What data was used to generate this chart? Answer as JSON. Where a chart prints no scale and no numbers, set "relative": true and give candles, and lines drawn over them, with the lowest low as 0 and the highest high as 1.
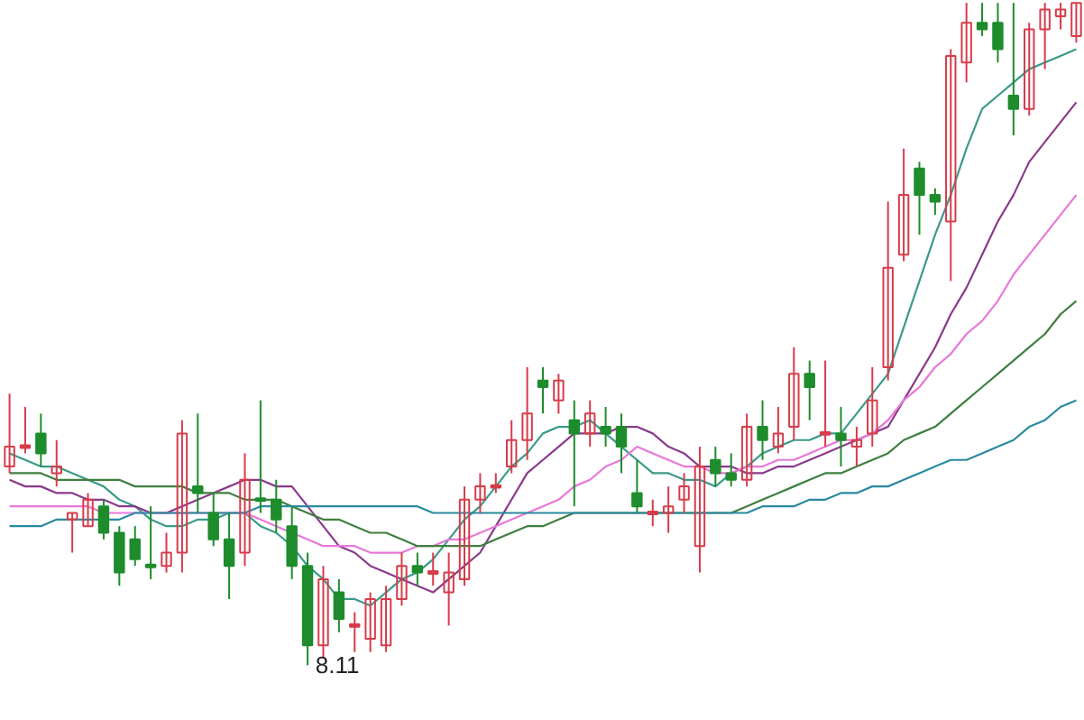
{
  "chart_data": {
    "type": "candlestick",
    "relative": true,
    "categories": [
      null,
      null,
      null,
      null,
      null,
      null,
      null,
      null,
      null,
      null,
      null,
      null,
      null,
      null,
      null,
      null,
      null,
      null,
      null,
      null,
      null,
      null,
      null,
      null,
      null,
      null,
      null,
      null,
      null,
      null,
      null,
      null,
      null,
      null,
      null,
      null,
      null,
      null,
      null,
      null,
      null,
      null,
      null,
      null,
      null,
      null,
      null,
      null,
      null,
      null,
      null,
      null,
      null,
      null,
      null,
      null,
      null,
      null,
      null,
      null,
      null,
      null,
      null,
      null,
      null,
      null,
      null,
      null,
      null
    ],
    "ohlc": [
      [
        0.3,
        0.41,
        0.29,
        0.33
      ],
      [
        0.33,
        0.39,
        0.32,
        0.33
      ],
      [
        0.35,
        0.38,
        0.3,
        0.32
      ],
      [
        0.29,
        0.34,
        0.27,
        0.3
      ],
      [
        0.22,
        0.23,
        0.17,
        0.23
      ],
      [
        0.21,
        0.26,
        0.21,
        0.25
      ],
      [
        0.24,
        0.25,
        0.19,
        0.2
      ],
      [
        0.2,
        0.21,
        0.12,
        0.14
      ],
      [
        0.19,
        0.21,
        0.15,
        0.16
      ],
      [
        0.15,
        0.24,
        0.13,
        0.15
      ],
      [
        0.15,
        0.2,
        0.14,
        0.17
      ],
      [
        0.17,
        0.37,
        0.14,
        0.35
      ],
      [
        0.27,
        0.38,
        0.23,
        0.26
      ],
      [
        0.23,
        0.26,
        0.18,
        0.19
      ],
      [
        0.19,
        0.23,
        0.1,
        0.15
      ],
      [
        0.17,
        0.32,
        0.15,
        0.28
      ],
      [
        0.25,
        0.4,
        0.23,
        0.25
      ],
      [
        0.25,
        0.28,
        0.2,
        0.22
      ],
      [
        0.21,
        0.24,
        0.13,
        0.15
      ],
      [
        0.15,
        0.17,
        0.0,
        0.03
      ],
      [
        0.03,
        0.15,
        0.01,
        0.13
      ],
      [
        0.11,
        0.13,
        0.05,
        0.07
      ],
      [
        0.06,
        0.08,
        0.02,
        0.06
      ],
      [
        0.04,
        0.11,
        0.02,
        0.1
      ],
      [
        0.03,
        0.12,
        0.02,
        0.1
      ],
      [
        0.1,
        0.17,
        0.09,
        0.15
      ],
      [
        0.15,
        0.17,
        0.12,
        0.14
      ],
      [
        0.14,
        0.17,
        0.12,
        0.14
      ],
      [
        0.11,
        0.17,
        0.06,
        0.14
      ],
      [
        0.13,
        0.27,
        0.12,
        0.25
      ],
      [
        0.25,
        0.29,
        0.23,
        0.27
      ],
      [
        0.27,
        0.29,
        0.26,
        0.27
      ],
      [
        0.3,
        0.37,
        0.29,
        0.34
      ],
      [
        0.34,
        0.45,
        0.31,
        0.38
      ],
      [
        0.43,
        0.45,
        0.38,
        0.42
      ],
      [
        0.4,
        0.44,
        0.38,
        0.43
      ],
      [
        0.37,
        0.4,
        0.24,
        0.35
      ],
      [
        0.35,
        0.4,
        0.33,
        0.38
      ],
      [
        0.36,
        0.39,
        0.33,
        0.35
      ],
      [
        0.36,
        0.38,
        0.29,
        0.33
      ],
      [
        0.26,
        0.31,
        0.23,
        0.24
      ],
      [
        0.23,
        0.25,
        0.21,
        0.23
      ],
      [
        0.23,
        0.27,
        0.2,
        0.24
      ],
      [
        0.25,
        0.29,
        0.23,
        0.27
      ],
      [
        0.18,
        0.33,
        0.14,
        0.3
      ],
      [
        0.31,
        0.33,
        0.27,
        0.29
      ],
      [
        0.29,
        0.32,
        0.27,
        0.28
      ],
      [
        0.28,
        0.38,
        0.27,
        0.36
      ],
      [
        0.36,
        0.4,
        0.31,
        0.34
      ],
      [
        0.33,
        0.39,
        0.32,
        0.35
      ],
      [
        0.36,
        0.48,
        0.34,
        0.44
      ],
      [
        0.44,
        0.46,
        0.37,
        0.42
      ],
      [
        0.35,
        0.46,
        0.33,
        0.35
      ],
      [
        0.35,
        0.39,
        0.3,
        0.34
      ],
      [
        0.33,
        0.36,
        0.3,
        0.34
      ],
      [
        0.35,
        0.45,
        0.33,
        0.4
      ],
      [
        0.45,
        0.7,
        0.43,
        0.6
      ],
      [
        0.62,
        0.78,
        0.61,
        0.71
      ],
      [
        0.75,
        0.76,
        0.65,
        0.71
      ],
      [
        0.71,
        0.72,
        0.68,
        0.7
      ],
      [
        0.67,
        0.93,
        0.58,
        0.92
      ],
      [
        0.91,
        1.0,
        0.88,
        0.97
      ],
      [
        0.97,
        1.0,
        0.95,
        0.96
      ],
      [
        0.97,
        1.0,
        0.91,
        0.93
      ],
      [
        0.86,
        1.0,
        0.8,
        0.84
      ],
      [
        0.84,
        0.97,
        0.83,
        0.96
      ],
      [
        0.96,
        1.0,
        0.9,
        0.99
      ],
      [
        0.98,
        1.0,
        0.96,
        0.99
      ],
      [
        0.95,
        1.0,
        0.94,
        1.0
      ]
    ],
    "colors": [
      "#d63c4a",
      "#d63c4a",
      "#1e8c2c",
      "#d63c4a",
      "#d63c4a",
      "#d63c4a",
      "#1e8c2c",
      "#1e8c2c",
      "#1e8c2c",
      "#1e8c2c",
      "#d63c4a",
      "#d63c4a",
      "#1e8c2c",
      "#1e8c2c",
      "#1e8c2c",
      "#d63c4a",
      "#1e8c2c",
      "#1e8c2c",
      "#1e8c2c",
      "#1e8c2c",
      "#d63c4a",
      "#1e8c2c",
      "#d63c4a",
      "#d63c4a",
      "#d63c4a",
      "#d63c4a",
      "#1e8c2c",
      "#d63c4a",
      "#d63c4a",
      "#d63c4a",
      "#d63c4a",
      "#d63c4a",
      "#d63c4a",
      "#d63c4a",
      "#1e8c2c",
      "#d63c4a",
      "#1e8c2c",
      "#d63c4a",
      "#1e8c2c",
      "#1e8c2c",
      "#1e8c2c",
      "#d63c4a",
      "#d63c4a",
      "#d63c4a",
      "#d63c4a",
      "#1e8c2c",
      "#1e8c2c",
      "#d63c4a",
      "#1e8c2c",
      "#d63c4a",
      "#d63c4a",
      "#1e8c2c",
      "#d63c4a",
      "#1e8c2c",
      "#d63c4a",
      "#d63c4a",
      "#d63c4a",
      "#d63c4a",
      "#1e8c2c",
      "#1e8c2c",
      "#d63c4a",
      "#d63c4a",
      "#1e8c2c",
      "#1e8c2c",
      "#1e8c2c",
      "#d63c4a",
      "#d63c4a",
      "#d63c4a",
      "#d63c4a"
    ],
    "series": [
      {
        "type": "line",
        "color": "#3a9a8a",
        "values": [
          0.32,
          0.31,
          0.3,
          0.3,
          0.29,
          0.28,
          0.27,
          0.25,
          0.24,
          0.22,
          0.21,
          0.21,
          0.22,
          0.22,
          0.23,
          0.23,
          0.21,
          0.2,
          0.18,
          0.15,
          0.13,
          0.1,
          0.1,
          0.09,
          0.11,
          0.13,
          0.14,
          0.16,
          0.19,
          0.22,
          0.24,
          0.27,
          0.3,
          0.32,
          0.35,
          0.36,
          0.36,
          0.37,
          0.35,
          0.33,
          0.31,
          0.29,
          0.29,
          0.28,
          0.28,
          0.27,
          0.29,
          0.3,
          0.32,
          0.33,
          0.34,
          0.34,
          0.35,
          0.35,
          0.38,
          0.41,
          0.44,
          0.51,
          0.58,
          0.65,
          0.71,
          0.78,
          0.84,
          0.86,
          0.88,
          0.9,
          0.91,
          0.92,
          0.93
        ]
      },
      {
        "type": "line",
        "color": "#8a3a8a",
        "values": [
          0.28,
          0.27,
          0.27,
          0.26,
          0.26,
          0.25,
          0.25,
          0.24,
          0.24,
          0.23,
          0.23,
          0.24,
          0.25,
          0.26,
          0.27,
          0.28,
          0.28,
          0.27,
          0.27,
          0.24,
          0.21,
          0.18,
          0.17,
          0.15,
          0.14,
          0.13,
          0.12,
          0.11,
          0.13,
          0.15,
          0.17,
          0.21,
          0.25,
          0.29,
          0.31,
          0.33,
          0.35,
          0.35,
          0.35,
          0.36,
          0.36,
          0.35,
          0.33,
          0.32,
          0.3,
          0.3,
          0.3,
          0.29,
          0.29,
          0.3,
          0.3,
          0.31,
          0.32,
          0.33,
          0.34,
          0.35,
          0.36,
          0.4,
          0.44,
          0.48,
          0.53,
          0.57,
          0.62,
          0.67,
          0.71,
          0.76,
          0.79,
          0.82,
          0.85
        ]
      },
      {
        "type": "line",
        "color": "#e878d8",
        "values": [
          0.24,
          0.24,
          0.24,
          0.24,
          0.24,
          0.24,
          0.23,
          0.23,
          0.23,
          0.23,
          0.23,
          0.23,
          0.23,
          0.23,
          0.23,
          0.23,
          0.22,
          0.21,
          0.2,
          0.19,
          0.18,
          0.18,
          0.18,
          0.17,
          0.17,
          0.17,
          0.18,
          0.18,
          0.19,
          0.19,
          0.2,
          0.21,
          0.22,
          0.23,
          0.24,
          0.25,
          0.27,
          0.28,
          0.3,
          0.31,
          0.33,
          0.32,
          0.31,
          0.3,
          0.3,
          0.29,
          0.29,
          0.3,
          0.3,
          0.31,
          0.31,
          0.32,
          0.33,
          0.34,
          0.34,
          0.35,
          0.37,
          0.4,
          0.42,
          0.45,
          0.47,
          0.5,
          0.52,
          0.55,
          0.59,
          0.62,
          0.65,
          0.68,
          0.71
        ]
      },
      {
        "type": "line",
        "color": "#3f7f3f",
        "values": [
          0.29,
          0.29,
          0.29,
          0.28,
          0.28,
          0.28,
          0.28,
          0.28,
          0.27,
          0.27,
          0.27,
          0.27,
          0.26,
          0.26,
          0.26,
          0.25,
          0.25,
          0.25,
          0.24,
          0.23,
          0.22,
          0.22,
          0.21,
          0.2,
          0.2,
          0.19,
          0.18,
          0.18,
          0.18,
          0.18,
          0.18,
          0.19,
          0.2,
          0.21,
          0.21,
          0.22,
          0.23,
          0.23,
          0.23,
          0.23,
          0.23,
          0.23,
          0.23,
          0.23,
          0.23,
          0.23,
          0.23,
          0.24,
          0.25,
          0.26,
          0.27,
          0.28,
          0.29,
          0.29,
          0.3,
          0.31,
          0.32,
          0.34,
          0.35,
          0.36,
          0.38,
          0.4,
          0.42,
          0.44,
          0.46,
          0.48,
          0.5,
          0.53,
          0.55
        ]
      },
      {
        "type": "line",
        "color": "#2a8aa0",
        "values": [
          0.21,
          0.21,
          0.21,
          0.22,
          0.22,
          0.22,
          0.22,
          0.22,
          0.23,
          0.23,
          0.23,
          0.23,
          0.23,
          0.23,
          0.23,
          0.23,
          0.24,
          0.24,
          0.24,
          0.24,
          0.24,
          0.24,
          0.24,
          0.24,
          0.24,
          0.24,
          0.24,
          0.23,
          0.23,
          0.23,
          0.23,
          0.23,
          0.23,
          0.23,
          0.23,
          0.23,
          0.23,
          0.23,
          0.23,
          0.23,
          0.23,
          0.23,
          0.23,
          0.23,
          0.23,
          0.23,
          0.23,
          0.23,
          0.24,
          0.24,
          0.24,
          0.25,
          0.25,
          0.26,
          0.26,
          0.27,
          0.27,
          0.28,
          0.29,
          0.3,
          0.31,
          0.31,
          0.32,
          0.33,
          0.34,
          0.36,
          0.37,
          0.39,
          0.4
        ]
      }
    ],
    "annotations": [
      "8.11"
    ]
  }
}
